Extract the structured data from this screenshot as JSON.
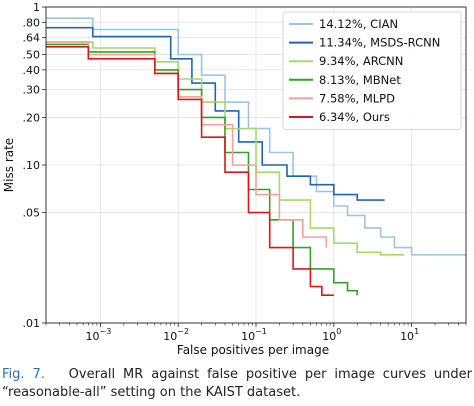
{
  "chart_data": {
    "type": "line",
    "xlabel": "False positives per image",
    "ylabel": "Miss rate",
    "xscale": "log",
    "yscale": "log",
    "xlim": [
      0.0002,
      50
    ],
    "ylim": [
      0.01,
      1
    ],
    "grid": true,
    "legend_position": "top-right",
    "x_ticks": [
      {
        "value": 0.001,
        "base": "10",
        "exp": "−3"
      },
      {
        "value": 0.01,
        "base": "10",
        "exp": "−2"
      },
      {
        "value": 0.1,
        "base": "10",
        "exp": "−1"
      },
      {
        "value": 1,
        "base": "10",
        "exp": "0"
      },
      {
        "value": 10,
        "base": "10",
        "exp": "1"
      }
    ],
    "y_ticks": [
      {
        "value": 0.8,
        "label": ".80"
      },
      {
        "value": 0.64,
        "label": ".64"
      },
      {
        "value": 0.5,
        "label": ".50"
      },
      {
        "value": 0.4,
        "label": ".40"
      },
      {
        "value": 0.3,
        "label": ".30"
      },
      {
        "value": 0.2,
        "label": ".20"
      },
      {
        "value": 0.1,
        "label": ".10"
      },
      {
        "value": 0.05,
        "label": ".05"
      },
      {
        "value": 0.01,
        "label": ".01"
      },
      {
        "value": 1,
        "label": "1"
      }
    ],
    "series": [
      {
        "name": "14.12%, CIAN",
        "color": "#9ec5df",
        "x": [
          0.0002,
          0.0006,
          0.0008,
          0.006,
          0.01,
          0.02,
          0.04,
          0.08,
          0.15,
          0.3,
          0.6,
          1.0,
          1.5,
          2.5,
          4,
          6,
          10,
          20,
          50
        ],
        "y": [
          0.85,
          0.85,
          0.72,
          0.72,
          0.5,
          0.37,
          0.25,
          0.17,
          0.12,
          0.085,
          0.068,
          0.055,
          0.048,
          0.04,
          0.035,
          0.03,
          0.027,
          0.027,
          0.027
        ]
      },
      {
        "name": "11.34%, MSDS-RCNN",
        "color": "#2166ac",
        "x": [
          0.0002,
          0.0007,
          0.0008,
          0.005,
          0.008,
          0.015,
          0.03,
          0.06,
          0.12,
          0.25,
          0.5,
          1.0,
          2.0,
          4.5
        ],
        "y": [
          0.74,
          0.74,
          0.65,
          0.65,
          0.47,
          0.33,
          0.22,
          0.14,
          0.1,
          0.085,
          0.075,
          0.065,
          0.06,
          0.06
        ]
      },
      {
        "name": "9.34%, ARCNN",
        "color": "#a6d96a",
        "x": [
          0.0002,
          0.0007,
          0.0008,
          0.003,
          0.005,
          0.01,
          0.02,
          0.04,
          0.1,
          0.2,
          0.5,
          1.0,
          2.0,
          4.0,
          8.0
        ],
        "y": [
          0.6,
          0.6,
          0.55,
          0.55,
          0.45,
          0.35,
          0.25,
          0.17,
          0.09,
          0.06,
          0.04,
          0.032,
          0.028,
          0.027,
          0.027
        ]
      },
      {
        "name": "8.13%, MBNet",
        "color": "#33a02c",
        "x": [
          0.0002,
          0.0006,
          0.0007,
          0.002,
          0.005,
          0.01,
          0.02,
          0.04,
          0.08,
          0.15,
          0.3,
          0.5,
          1.0,
          1.5,
          2.0
        ],
        "y": [
          0.58,
          0.58,
          0.52,
          0.52,
          0.4,
          0.3,
          0.2,
          0.12,
          0.07,
          0.045,
          0.03,
          0.022,
          0.018,
          0.016,
          0.015
        ]
      },
      {
        "name": "7.58%, MLPD",
        "color": "#f4a09c",
        "x": [
          0.0002,
          0.0006,
          0.0007,
          0.0025,
          0.005,
          0.01,
          0.02,
          0.05,
          0.1,
          0.2,
          0.4,
          0.8
        ],
        "y": [
          0.6,
          0.6,
          0.5,
          0.5,
          0.38,
          0.27,
          0.18,
          0.1,
          0.065,
          0.045,
          0.035,
          0.03
        ]
      },
      {
        "name": "6.34%, Ours",
        "color": "#d7191c",
        "x": [
          0.0002,
          0.0006,
          0.0007,
          0.0025,
          0.005,
          0.01,
          0.02,
          0.04,
          0.08,
          0.15,
          0.3,
          0.5,
          0.7,
          1.0
        ],
        "y": [
          0.56,
          0.56,
          0.47,
          0.47,
          0.38,
          0.26,
          0.15,
          0.09,
          0.05,
          0.03,
          0.022,
          0.017,
          0.015,
          0.015
        ]
      }
    ]
  },
  "caption": {
    "label": "Fig. 7.",
    "text": "Overall MR against false positive per image curves under “reasonable-all” setting on the KAIST dataset."
  }
}
